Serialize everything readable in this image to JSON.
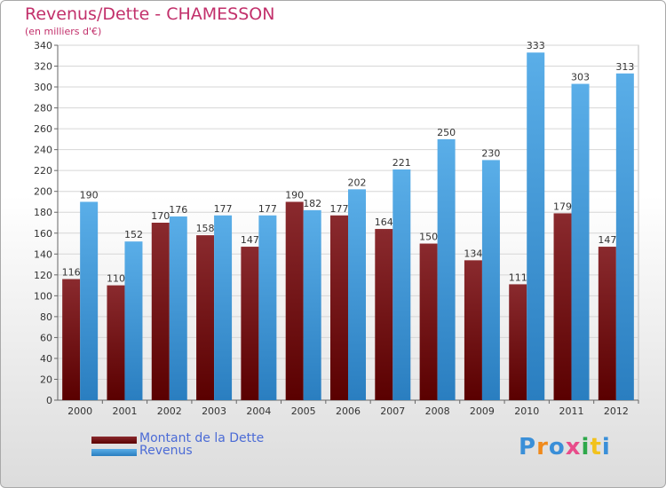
{
  "title": "Revenus/Dette - CHAMESSON",
  "subtitle": "(en milliers d'€)",
  "colors": {
    "debt_top": "#8a2a2e",
    "debt_bottom": "#5a0000",
    "rev_top": "#5aaee8",
    "rev_bottom": "#2a7ec0",
    "title": "#c2306b",
    "legend_text": "#4b6bd6"
  },
  "chart_data": {
    "type": "bar",
    "categories": [
      "2000",
      "2001",
      "2002",
      "2003",
      "2004",
      "2005",
      "2006",
      "2007",
      "2008",
      "2009",
      "2010",
      "2011",
      "2012"
    ],
    "series": [
      {
        "name": "Montant de la Dette",
        "values": [
          116,
          110,
          170,
          158,
          147,
          190,
          177,
          164,
          150,
          134,
          111,
          179,
          147
        ]
      },
      {
        "name": "Revenus",
        "values": [
          190,
          152,
          176,
          177,
          177,
          182,
          202,
          221,
          250,
          230,
          333,
          303,
          313
        ]
      }
    ],
    "ylim": [
      0,
      340
    ],
    "yticks": [
      0,
      20,
      40,
      60,
      80,
      100,
      120,
      140,
      160,
      180,
      200,
      220,
      240,
      260,
      280,
      300,
      320,
      340
    ],
    "grid": true,
    "legend": "bottom-left"
  },
  "logo": {
    "letters": [
      "P",
      "r",
      "o",
      "x",
      "i",
      "t",
      "i"
    ],
    "colors": [
      "#3a8fd8",
      "#f08a1c",
      "#3a8fd8",
      "#e84c8a",
      "#2da84a",
      "#f2c21c",
      "#3a8fd8"
    ]
  }
}
